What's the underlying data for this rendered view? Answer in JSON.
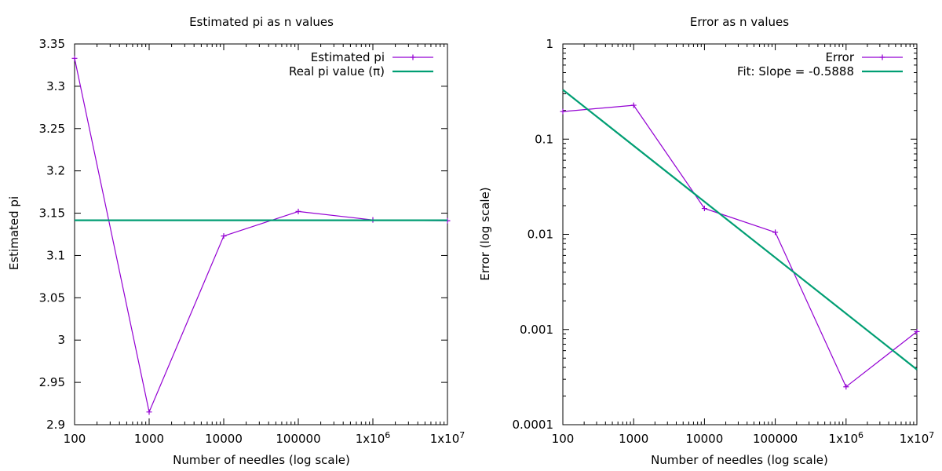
{
  "chart_data": [
    {
      "type": "line",
      "title": "Estimated pi as n values",
      "xlabel": "Number of needles (log scale)",
      "ylabel": "Estimated pi",
      "xscale": "log",
      "xlim": [
        100,
        10000000
      ],
      "ylim": [
        2.9,
        3.35
      ],
      "x_ticks": [
        "100",
        "1000",
        "10000",
        "100000",
        "1x10^6",
        "1x10^7"
      ],
      "y_ticks": [
        "2.9",
        "2.95",
        "3",
        "3.05",
        "3.1",
        "3.15",
        "3.2",
        "3.25",
        "3.3",
        "3.35"
      ],
      "legend_position": "top-right",
      "grid": false,
      "series": [
        {
          "name": "Estimated pi",
          "color": "#9400d3",
          "marker": "plus",
          "x": [
            100,
            1000,
            10000,
            100000,
            1000000,
            10000000
          ],
          "y": [
            3.333,
            2.915,
            3.123,
            3.152,
            3.142,
            3.141
          ]
        },
        {
          "name": "Real pi value (π)",
          "color": "#009e73",
          "marker": "none",
          "x": [
            100,
            10000000
          ],
          "y": [
            3.14159,
            3.14159
          ]
        }
      ]
    },
    {
      "type": "line",
      "title": "Error as n values",
      "xlabel": "Number of needles (log scale)",
      "ylabel": "Error (log scale)",
      "xscale": "log",
      "yscale": "log",
      "xlim": [
        100,
        10000000
      ],
      "ylim": [
        0.0001,
        1
      ],
      "x_ticks": [
        "100",
        "1000",
        "10000",
        "100000",
        "1x10^6",
        "1x10^7"
      ],
      "y_ticks": [
        "0.0001",
        "0.001",
        "0.01",
        "0.1",
        "1"
      ],
      "legend_position": "top-right",
      "grid": false,
      "series": [
        {
          "name": "Error",
          "color": "#9400d3",
          "marker": "plus",
          "x": [
            100,
            1000,
            10000,
            100000,
            1000000,
            10000000
          ],
          "y": [
            0.195,
            0.227,
            0.0187,
            0.0105,
            0.00025,
            0.00095
          ]
        },
        {
          "name": "Fit: Slope = -0.5888",
          "color": "#009e73",
          "marker": "none",
          "x": [
            100,
            10000000
          ],
          "y": [
            0.33,
            0.00038
          ]
        }
      ]
    }
  ]
}
